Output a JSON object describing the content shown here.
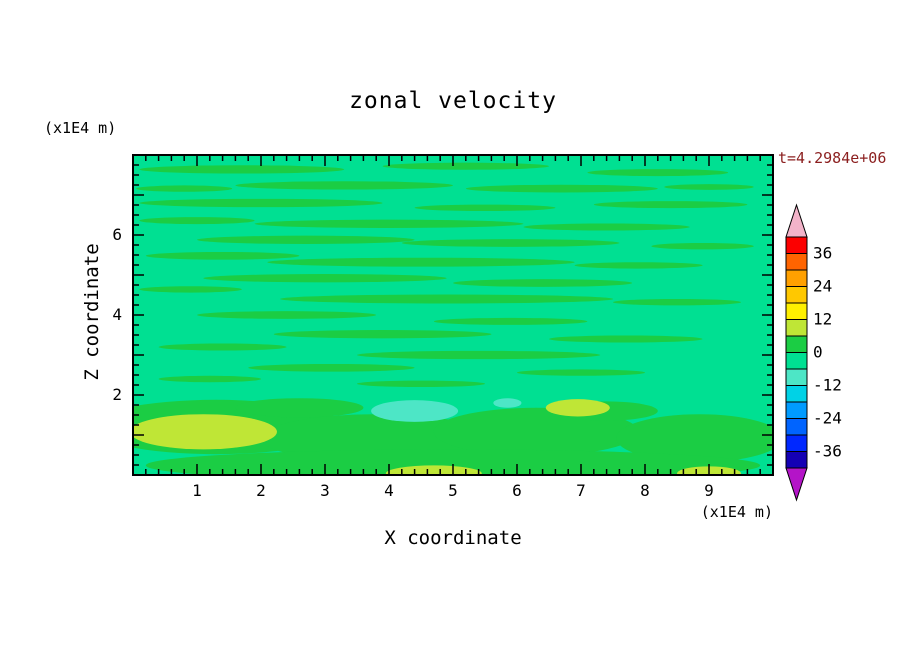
{
  "figure": {
    "annotation_color": "#8B1E1E"
  },
  "chart_data": {
    "type": "filled-contour",
    "title": "zonal velocity",
    "xlabel": "X coordinate",
    "ylabel": "Z coordinate",
    "x_units_label": "(x1E4 m)",
    "y_units_label": "(x1E4 m)",
    "time_annotation": "t=4.2984e+06",
    "xlim": [
      0,
      10
    ],
    "ylim": [
      0,
      8
    ],
    "x_minor_tick_step": 0.2,
    "x_major_tick_step": 1,
    "y_minor_tick_step": 0.25,
    "y_major_tick_step": 1,
    "x_tick_values": [
      1,
      2,
      3,
      4,
      5,
      6,
      7,
      8,
      9
    ],
    "x_tick_labels": [
      "1",
      "2",
      "3",
      "4",
      "5",
      "6",
      "7",
      "8",
      "9"
    ],
    "y_tick_values": [
      2,
      4,
      6
    ],
    "y_tick_labels": [
      "2",
      "4",
      "6"
    ],
    "grid": false,
    "legend_position": "right-colorbar",
    "colorbar": {
      "label_values": [
        36,
        24,
        12,
        0,
        -12,
        -24,
        -36
      ],
      "labels": [
        "36",
        "24",
        "12",
        "0",
        "-12",
        "-24",
        "-36"
      ],
      "level_max": 42,
      "level_min": -42,
      "level_step": 6,
      "band_colors_top_to_bottom": [
        "#FC0000",
        "#FF6400",
        "#FFA000",
        "#FFC800",
        "#FFF000",
        "#BFE636",
        "#1BCD44",
        "#00E092",
        "#4DE6C6",
        "#00D2E6",
        "#009BFF",
        "#0064FF",
        "#0028FF",
        "#1400B4"
      ],
      "over_arrow_color": "#F2B3C9",
      "under_arrow_color": "#B414C8"
    },
    "field": {
      "description": "Zonal velocity cross-section; field is near zero everywhere: background in the -6..0 band (spring green) with many thin horizontal streaks in the 0..6 band (green); near the bottom boundary a broad 0..6 green band containing 6..12 yellow-green patches (bottom-left, center-right, bottom edge) and small -12..-6 turquoise patches (bottom center).",
      "value_range_shown": [
        -12,
        12
      ],
      "palette": {
        "base": "#00E092",
        "g": "#1BCD44",
        "y": "#BFE636",
        "t": "#4DE6C6"
      },
      "base_color_key": "base",
      "blobs": [
        [
          0.17,
          0.045,
          0.16,
          0.013,
          "g"
        ],
        [
          0.52,
          0.035,
          0.13,
          0.011,
          "g"
        ],
        [
          0.82,
          0.055,
          0.11,
          0.011,
          "g"
        ],
        [
          0.08,
          0.105,
          0.075,
          0.01,
          "g"
        ],
        [
          0.33,
          0.095,
          0.17,
          0.013,
          "g"
        ],
        [
          0.67,
          0.105,
          0.15,
          0.012,
          "g"
        ],
        [
          0.9,
          0.1,
          0.07,
          0.009,
          "g"
        ],
        [
          0.2,
          0.15,
          0.19,
          0.013,
          "g"
        ],
        [
          0.55,
          0.165,
          0.11,
          0.01,
          "g"
        ],
        [
          0.84,
          0.155,
          0.12,
          0.011,
          "g"
        ],
        [
          0.1,
          0.205,
          0.09,
          0.011,
          "g"
        ],
        [
          0.4,
          0.215,
          0.21,
          0.013,
          "g"
        ],
        [
          0.74,
          0.225,
          0.13,
          0.011,
          "g"
        ],
        [
          0.27,
          0.265,
          0.17,
          0.013,
          "g"
        ],
        [
          0.59,
          0.275,
          0.17,
          0.012,
          "g"
        ],
        [
          0.89,
          0.285,
          0.08,
          0.01,
          "g"
        ],
        [
          0.14,
          0.315,
          0.12,
          0.012,
          "g"
        ],
        [
          0.45,
          0.335,
          0.24,
          0.014,
          "g"
        ],
        [
          0.79,
          0.345,
          0.1,
          0.01,
          "g"
        ],
        [
          0.3,
          0.385,
          0.19,
          0.013,
          "g"
        ],
        [
          0.64,
          0.4,
          0.14,
          0.012,
          "g"
        ],
        [
          0.09,
          0.42,
          0.08,
          0.01,
          "g"
        ],
        [
          0.49,
          0.45,
          0.26,
          0.014,
          "g"
        ],
        [
          0.85,
          0.46,
          0.1,
          0.01,
          "g"
        ],
        [
          0.24,
          0.5,
          0.14,
          0.012,
          "g"
        ],
        [
          0.59,
          0.52,
          0.12,
          0.011,
          "g"
        ],
        [
          0.39,
          0.56,
          0.17,
          0.013,
          "g"
        ],
        [
          0.77,
          0.575,
          0.12,
          0.011,
          "g"
        ],
        [
          0.14,
          0.6,
          0.1,
          0.011,
          "g"
        ],
        [
          0.54,
          0.625,
          0.19,
          0.013,
          "g"
        ],
        [
          0.31,
          0.665,
          0.13,
          0.012,
          "g"
        ],
        [
          0.7,
          0.68,
          0.1,
          0.01,
          "g"
        ],
        [
          0.12,
          0.7,
          0.08,
          0.01,
          "g"
        ],
        [
          0.45,
          0.715,
          0.1,
          0.01,
          "g"
        ],
        [
          0.13,
          0.85,
          0.2,
          0.085,
          "g"
        ],
        [
          0.38,
          0.885,
          0.18,
          0.075,
          "g"
        ],
        [
          0.63,
          0.865,
          0.16,
          0.075,
          "g"
        ],
        [
          0.885,
          0.885,
          0.13,
          0.075,
          "g"
        ],
        [
          0.5,
          0.97,
          0.48,
          0.05,
          "g"
        ],
        [
          0.26,
          0.79,
          0.1,
          0.03,
          "g"
        ],
        [
          0.74,
          0.8,
          0.08,
          0.03,
          "g"
        ],
        [
          0.11,
          0.865,
          0.115,
          0.055,
          "y"
        ],
        [
          0.695,
          0.79,
          0.05,
          0.027,
          "y"
        ],
        [
          0.47,
          0.995,
          0.075,
          0.025,
          "y"
        ],
        [
          0.9,
          0.995,
          0.05,
          0.022,
          "y"
        ],
        [
          0.44,
          0.8,
          0.068,
          0.034,
          "t"
        ],
        [
          0.585,
          0.775,
          0.022,
          0.015,
          "t"
        ]
      ]
    }
  }
}
